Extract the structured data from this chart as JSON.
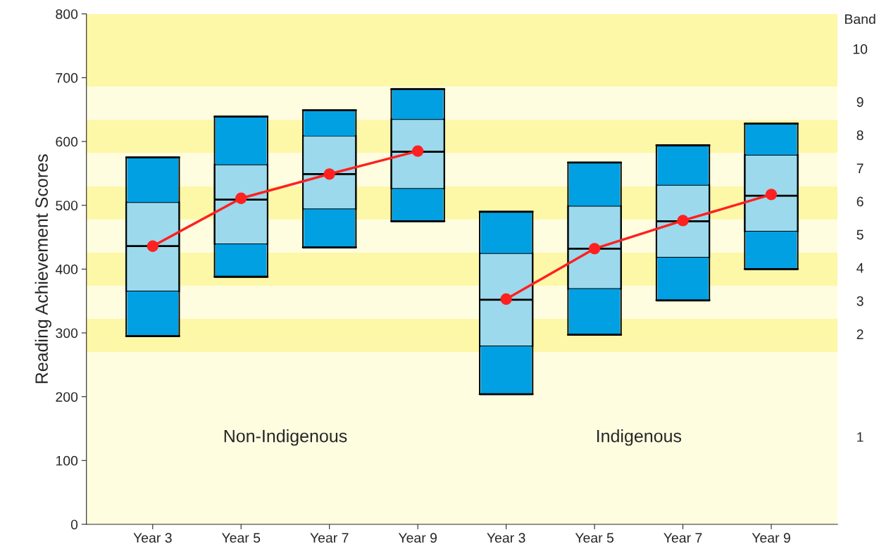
{
  "chart_data": {
    "type": "box",
    "ylabel": "Reading Achievement Scores",
    "y2label": "Band",
    "categories": [
      "Year 3",
      "Year 5",
      "Year 7",
      "Year 9",
      "Year 3",
      "Year 5",
      "Year 7",
      "Year 9"
    ],
    "boxes": [
      {
        "low": 295,
        "q1": 365,
        "median": 436,
        "q3": 505,
        "high": 575
      },
      {
        "low": 388,
        "q1": 439,
        "median": 509,
        "q3": 564,
        "high": 639
      },
      {
        "low": 434,
        "q1": 494,
        "median": 549,
        "q3": 609,
        "high": 649
      },
      {
        "low": 475,
        "q1": 526,
        "median": 584,
        "q3": 635,
        "high": 682
      },
      {
        "low": 204,
        "q1": 279,
        "median": 352,
        "q3": 425,
        "high": 490
      },
      {
        "low": 297,
        "q1": 369,
        "median": 432,
        "q3": 499,
        "high": 567
      },
      {
        "low": 351,
        "q1": 418,
        "median": 475,
        "q3": 532,
        "high": 594
      },
      {
        "low": 400,
        "q1": 459,
        "median": 515,
        "q3": 579,
        "high": 628
      }
    ],
    "series": [
      {
        "type": "line",
        "color": "#ff2020",
        "marker": "circle",
        "values": [
          436,
          511,
          549,
          585,
          null,
          null,
          null,
          null
        ]
      },
      {
        "type": "line",
        "color": "#ff2020",
        "marker": "circle",
        "values": [
          null,
          null,
          null,
          null,
          353,
          432,
          476,
          517
        ]
      }
    ],
    "color": "#00a0e3",
    "colors": [
      "#9cd9ec",
      "#9cd9ec",
      "#9cd9ec",
      "#9cd9ec",
      "#9cd9ec",
      "#9cd9ec",
      "#9cd9ec",
      "#9cd9ec"
    ],
    "ylim": [
      0,
      800
    ],
    "yticks": [
      0,
      100,
      200,
      300,
      400,
      500,
      600,
      700,
      800
    ],
    "bands": [
      {
        "axis": "y",
        "from": 0,
        "to": 270,
        "color": "#fffde0",
        "label": "1"
      },
      {
        "axis": "y",
        "from": 270,
        "to": 322,
        "color": "#fdf7a8",
        "label": "2"
      },
      {
        "axis": "y",
        "from": 322,
        "to": 374,
        "color": "#fffde0",
        "label": "3"
      },
      {
        "axis": "y",
        "from": 374,
        "to": 426,
        "color": "#fdf7a8",
        "label": "4"
      },
      {
        "axis": "y",
        "from": 426,
        "to": 478,
        "color": "#fffde0",
        "label": "5"
      },
      {
        "axis": "y",
        "from": 478,
        "to": 530,
        "color": "#fdf7a8",
        "label": "6"
      },
      {
        "axis": "y",
        "from": 530,
        "to": 582,
        "color": "#fffde0",
        "label": "7"
      },
      {
        "axis": "y",
        "from": 582,
        "to": 634,
        "color": "#fdf7a8",
        "label": "8"
      },
      {
        "axis": "y",
        "from": 634,
        "to": 686,
        "color": "#fffde0",
        "label": "9"
      },
      {
        "axis": "y",
        "from": 686,
        "to": 800,
        "color": "#fdf7a8",
        "label": "10"
      }
    ],
    "annotations": [
      "Non-Indigenous",
      "Indigenous"
    ],
    "grid": false,
    "legend": false
  }
}
